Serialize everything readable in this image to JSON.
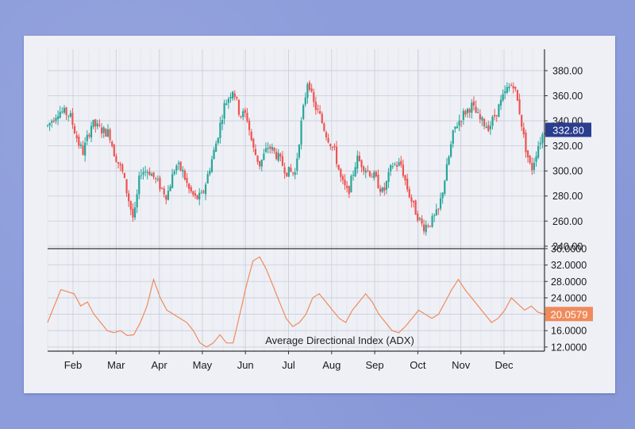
{
  "colors": {
    "background": "#8d9ddb",
    "paper": "#eef0f6",
    "grid": "#c9ccd8",
    "up_candle": "#26a69a",
    "down_candle": "#ef5350",
    "adx_line": "#f08a5b",
    "price_badge": "#2b3d8f",
    "adx_badge": "#f08a5b"
  },
  "chart_data": [
    {
      "type": "candlestick",
      "title": "",
      "x_ticks": [
        "Feb",
        "Mar",
        "Apr",
        "May",
        "Jun",
        "Jul",
        "Aug",
        "Sep",
        "Oct",
        "Nov",
        "Dec"
      ],
      "y_ticks": [
        "240.00",
        "260.00",
        "280.00",
        "300.00",
        "320.00",
        "340.00",
        "360.00",
        "380.00"
      ],
      "ylim": [
        238,
        392
      ],
      "grid": true,
      "last_price_label": "332.80",
      "close_anchors": [
        [
          0.0,
          336
        ],
        [
          0.5,
          348
        ],
        [
          1.0,
          345
        ],
        [
          1.4,
          322
        ],
        [
          1.6,
          315
        ],
        [
          2.0,
          338
        ],
        [
          2.5,
          332
        ],
        [
          2.8,
          330
        ],
        [
          3.0,
          315
        ],
        [
          3.4,
          298
        ],
        [
          3.6,
          282
        ],
        [
          3.9,
          260
        ],
        [
          4.2,
          300
        ],
        [
          4.6,
          300
        ],
        [
          5.0,
          290
        ],
        [
          5.4,
          280
        ],
        [
          5.8,
          305
        ],
        [
          6.1,
          300
        ],
        [
          6.4,
          285
        ],
        [
          6.7,
          278
        ],
        [
          7.0,
          280
        ],
        [
          7.3,
          300
        ],
        [
          7.6,
          320
        ],
        [
          8.0,
          352
        ],
        [
          8.4,
          366
        ],
        [
          8.7,
          345
        ],
        [
          9.0,
          345
        ],
        [
          9.3,
          318
        ],
        [
          9.6,
          305
        ],
        [
          10.0,
          320
        ],
        [
          10.4,
          312
        ],
        [
          10.8,
          300
        ],
        [
          11.2,
          298
        ],
        [
          11.5,
          340
        ],
        [
          11.8,
          375
        ],
        [
          12.0,
          355
        ],
        [
          12.3,
          345
        ],
        [
          12.6,
          330
        ],
        [
          13.0,
          315
        ],
        [
          13.3,
          292
        ],
        [
          13.6,
          282
        ],
        [
          14.0,
          310
        ],
        [
          14.4,
          302
        ],
        [
          14.8,
          295
        ],
        [
          15.2,
          282
        ],
        [
          15.6,
          305
        ],
        [
          16.0,
          305
        ],
        [
          16.3,
          285
        ],
        [
          16.6,
          270
        ],
        [
          17.0,
          255
        ],
        [
          17.4,
          260
        ],
        [
          17.7,
          268
        ],
        [
          18.0,
          295
        ],
        [
          18.4,
          333
        ],
        [
          18.8,
          345
        ],
        [
          19.2,
          352
        ],
        [
          19.6,
          340
        ],
        [
          20.0,
          335
        ],
        [
          20.4,
          350
        ],
        [
          20.8,
          365
        ],
        [
          21.1,
          370
        ],
        [
          21.4,
          345
        ],
        [
          21.6,
          322
        ],
        [
          21.9,
          300
        ],
        [
          22.2,
          320
        ],
        [
          22.5,
          333
        ]
      ]
    },
    {
      "type": "line",
      "title": "Average Directional Index (ADX)",
      "x_ticks": [
        "Feb",
        "Mar",
        "Apr",
        "May",
        "Jun",
        "Jul",
        "Aug",
        "Sep",
        "Oct",
        "Nov",
        "Dec"
      ],
      "y_ticks": [
        "12.0000",
        "16.0000",
        "20.0000",
        "24.0000",
        "28.0000",
        "32.0000",
        "36.0000"
      ],
      "ylim": [
        11,
        36
      ],
      "last_value_label": "20.0579",
      "x": [
        0,
        0.3,
        0.6,
        0.9,
        1.2,
        1.5,
        1.8,
        2.1,
        2.4,
        2.7,
        3.0,
        3.3,
        3.6,
        3.9,
        4.2,
        4.5,
        4.8,
        5.1,
        5.4,
        5.7,
        6.0,
        6.3,
        6.6,
        6.9,
        7.2,
        7.5,
        7.8,
        8.1,
        8.4,
        8.7,
        9.0,
        9.3,
        9.6,
        9.9,
        10.2,
        10.5,
        10.8,
        11.1,
        11.4,
        11.7,
        12.0,
        12.3,
        12.6,
        12.9,
        13.2,
        13.5,
        13.8,
        14.1,
        14.4,
        14.7,
        15.0,
        15.3,
        15.6,
        15.9,
        16.2,
        16.5,
        16.8,
        17.1,
        17.4,
        17.7,
        18.0,
        18.3,
        18.6,
        18.9,
        19.2,
        19.5,
        19.8,
        20.1,
        20.4,
        20.7,
        21.0,
        21.3,
        21.6,
        21.9,
        22.2,
        22.5
      ],
      "y": [
        18,
        22,
        26,
        25.5,
        25,
        22,
        23,
        20,
        18,
        16,
        15.5,
        16,
        14.8,
        15,
        18,
        22,
        28.5,
        24,
        21,
        20,
        19,
        18,
        16,
        13,
        12,
        13,
        15,
        13,
        13,
        20,
        27,
        33,
        34,
        31,
        27,
        23,
        19,
        17,
        18,
        20,
        24,
        25,
        23,
        21,
        19,
        18,
        21,
        23,
        25,
        23,
        20,
        18,
        16,
        15.5,
        17,
        19,
        21,
        20,
        19,
        20,
        23,
        26,
        28.5,
        26,
        24,
        22,
        20,
        18,
        19,
        21,
        24,
        22.5,
        21,
        22,
        20.5,
        20.06
      ]
    }
  ]
}
